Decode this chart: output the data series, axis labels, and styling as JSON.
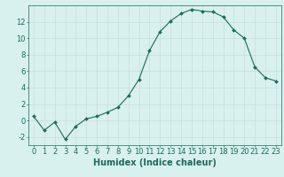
{
  "x": [
    0,
    1,
    2,
    3,
    4,
    5,
    6,
    7,
    8,
    9,
    10,
    11,
    12,
    13,
    14,
    15,
    16,
    17,
    18,
    19,
    20,
    21,
    22,
    23
  ],
  "y": [
    0.5,
    -1.2,
    -0.2,
    -2.3,
    -0.7,
    0.2,
    0.5,
    1.0,
    1.6,
    3.0,
    5.0,
    8.5,
    10.8,
    12.1,
    13.0,
    13.5,
    13.3,
    13.2,
    12.6,
    11.0,
    10.0,
    6.5,
    5.2,
    4.8
  ],
  "line_color": "#1a6b5a",
  "marker": "D",
  "marker_size": 2,
  "bg_color": "#d8f0ee",
  "grid_color": "#c8dede",
  "xlabel": "Humidex (Indice chaleur)",
  "xlim": [
    -0.5,
    23.5
  ],
  "ylim": [
    -3,
    14
  ],
  "yticks": [
    -2,
    0,
    2,
    4,
    6,
    8,
    10,
    12
  ],
  "xticks": [
    0,
    1,
    2,
    3,
    4,
    5,
    6,
    7,
    8,
    9,
    10,
    11,
    12,
    13,
    14,
    15,
    16,
    17,
    18,
    19,
    20,
    21,
    22,
    23
  ],
  "label_color": "#1a6b5a",
  "tick_color": "#1a6b5a",
  "xlabel_fontsize": 7,
  "tick_fontsize": 6
}
